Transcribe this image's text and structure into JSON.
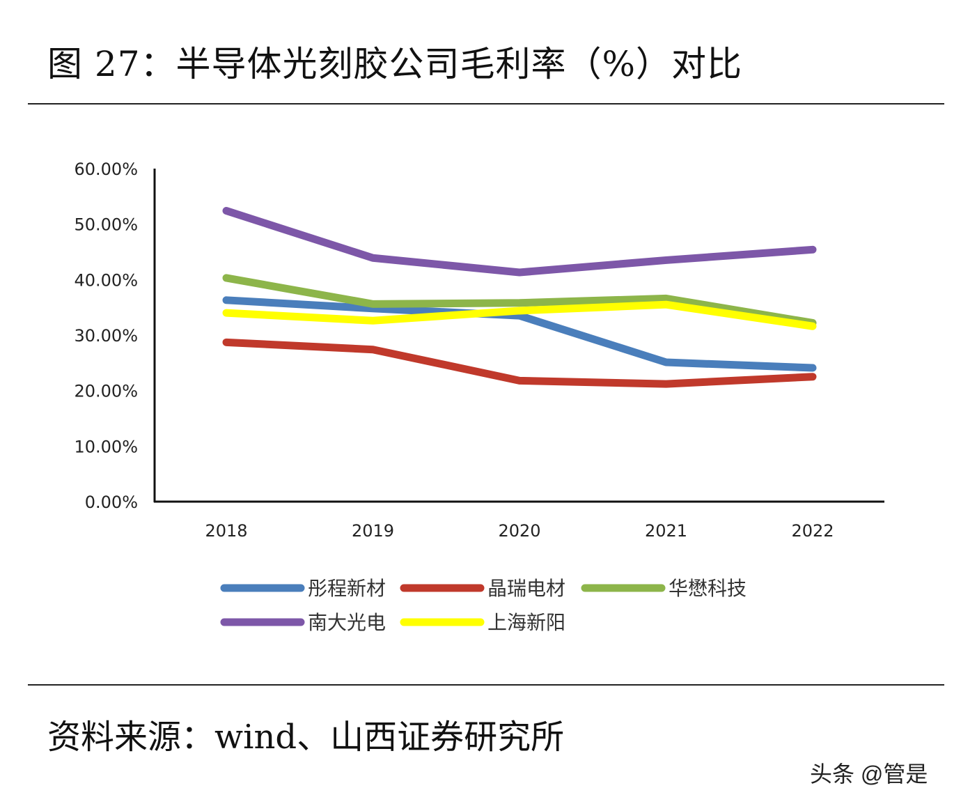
{
  "title": "图 27：半导体光刻胶公司毛利率（%）对比",
  "source": "资料来源：wind、山西证券研究所",
  "watermark": "头条 @管是",
  "chart_data": {
    "type": "line",
    "title": "",
    "xlabel": "",
    "ylabel": "",
    "categories": [
      "2018",
      "2019",
      "2020",
      "2021",
      "2022"
    ],
    "ylim": [
      0,
      60
    ],
    "yticks": [
      "0.00%",
      "10.00%",
      "20.00%",
      "30.00%",
      "40.00%",
      "50.00%",
      "60.00%"
    ],
    "grid": false,
    "legend_placement": "bottom",
    "series": [
      {
        "name": "彤程新材",
        "color": "#4a7ebb",
        "values": [
          36.3,
          34.8,
          33.5,
          25.1,
          24.1
        ]
      },
      {
        "name": "晶瑞电材",
        "color": "#c0392b",
        "values": [
          28.7,
          27.4,
          21.8,
          21.2,
          22.5
        ]
      },
      {
        "name": "华懋科技",
        "color": "#8db54a",
        "values": [
          40.3,
          35.6,
          35.8,
          36.6,
          32.2
        ]
      },
      {
        "name": "南大光电",
        "color": "#7d57a8",
        "values": [
          52.4,
          43.9,
          41.3,
          43.5,
          45.4
        ]
      },
      {
        "name": "上海新阳",
        "color": "#ffff00",
        "values": [
          34.0,
          32.6,
          34.4,
          35.5,
          31.6
        ]
      }
    ]
  }
}
